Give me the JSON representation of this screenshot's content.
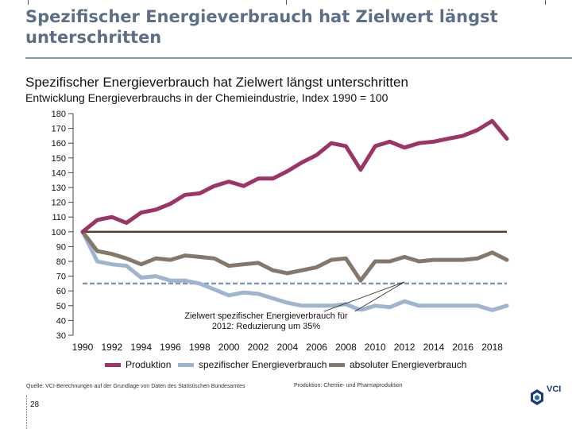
{
  "slide": {
    "title": "Spezifischer Energieverbrauch hat Zielwert längst unterschritten",
    "source_line": "Quelle: VCI-Berechnungen auf der Grundlage von Daten des Statistischen Bundesamtes",
    "right_note": "Produktion: Chemie- und Pharmaproduktion",
    "page_number": "28",
    "logo_text": "VCI"
  },
  "chart_data": {
    "type": "line",
    "title": "Spezifischer Energieverbrauch hat Zielwert längst unterschritten",
    "subtitle": "Entwicklung Energieverbrauchs in der Chemieindustrie, Index 1990 = 100",
    "xlabel": "",
    "ylabel": "",
    "ylim": [
      30,
      180
    ],
    "yticks": [
      180,
      170,
      160,
      150,
      140,
      130,
      120,
      110,
      100,
      90,
      80,
      70,
      60,
      50,
      40,
      30
    ],
    "xlim": [
      1990,
      2019
    ],
    "xticks": [
      1990,
      1992,
      1994,
      1996,
      1998,
      2000,
      2002,
      2004,
      2006,
      2008,
      2010,
      2012,
      2014,
      2016,
      2018
    ],
    "x": [
      1990,
      1991,
      1992,
      1993,
      1994,
      1995,
      1996,
      1997,
      1998,
      1999,
      2000,
      2001,
      2002,
      2003,
      2004,
      2005,
      2006,
      2007,
      2008,
      2009,
      2010,
      2011,
      2012,
      2013,
      2014,
      2015,
      2016,
      2017,
      2018,
      2019
    ],
    "series": [
      {
        "name": "Produktion",
        "color": "#9c3567",
        "values": [
          100,
          108,
          110,
          106,
          113,
          115,
          119,
          125,
          126,
          131,
          134,
          131,
          136,
          136,
          141,
          147,
          152,
          160,
          158,
          142,
          158,
          161,
          157,
          160,
          161,
          163,
          165,
          169,
          175,
          163
        ]
      },
      {
        "name": "spezifischer Energieverbrauch",
        "color": "#9fb5cf",
        "values": [
          100,
          80,
          78,
          77,
          69,
          70,
          67,
          67,
          65,
          61,
          57,
          59,
          58,
          55,
          52,
          50,
          50,
          50,
          51,
          47,
          50,
          49,
          53,
          50,
          50,
          50,
          50,
          50,
          47,
          50
        ]
      },
      {
        "name": "absoluter Energieverbrauch",
        "color": "#85786b",
        "values": [
          100,
          87,
          85,
          82,
          78,
          82,
          81,
          84,
          83,
          82,
          77,
          78,
          79,
          74,
          72,
          74,
          76,
          81,
          82,
          67,
          80,
          80,
          83,
          80,
          81,
          81,
          81,
          82,
          86,
          81
        ]
      }
    ],
    "reference_lines": [
      {
        "name": "Index 1990",
        "value": 100,
        "color": "#5a3f31",
        "style": "solid"
      },
      {
        "name": "Zielwert",
        "value": 65,
        "color": "#7f97b8",
        "style": "dashed"
      }
    ],
    "annotation": {
      "text_line1": "Zielwert spezifischer Energieverbrauch für",
      "text_line2": "2012: Reduzierung um 35%",
      "points_to_x": 2012,
      "points_to_y": 65
    },
    "legend": [
      "Produktion",
      "spezifischer Energieverbrauch",
      "absoluter Energieverbrauch"
    ],
    "legend_position": "bottom"
  }
}
